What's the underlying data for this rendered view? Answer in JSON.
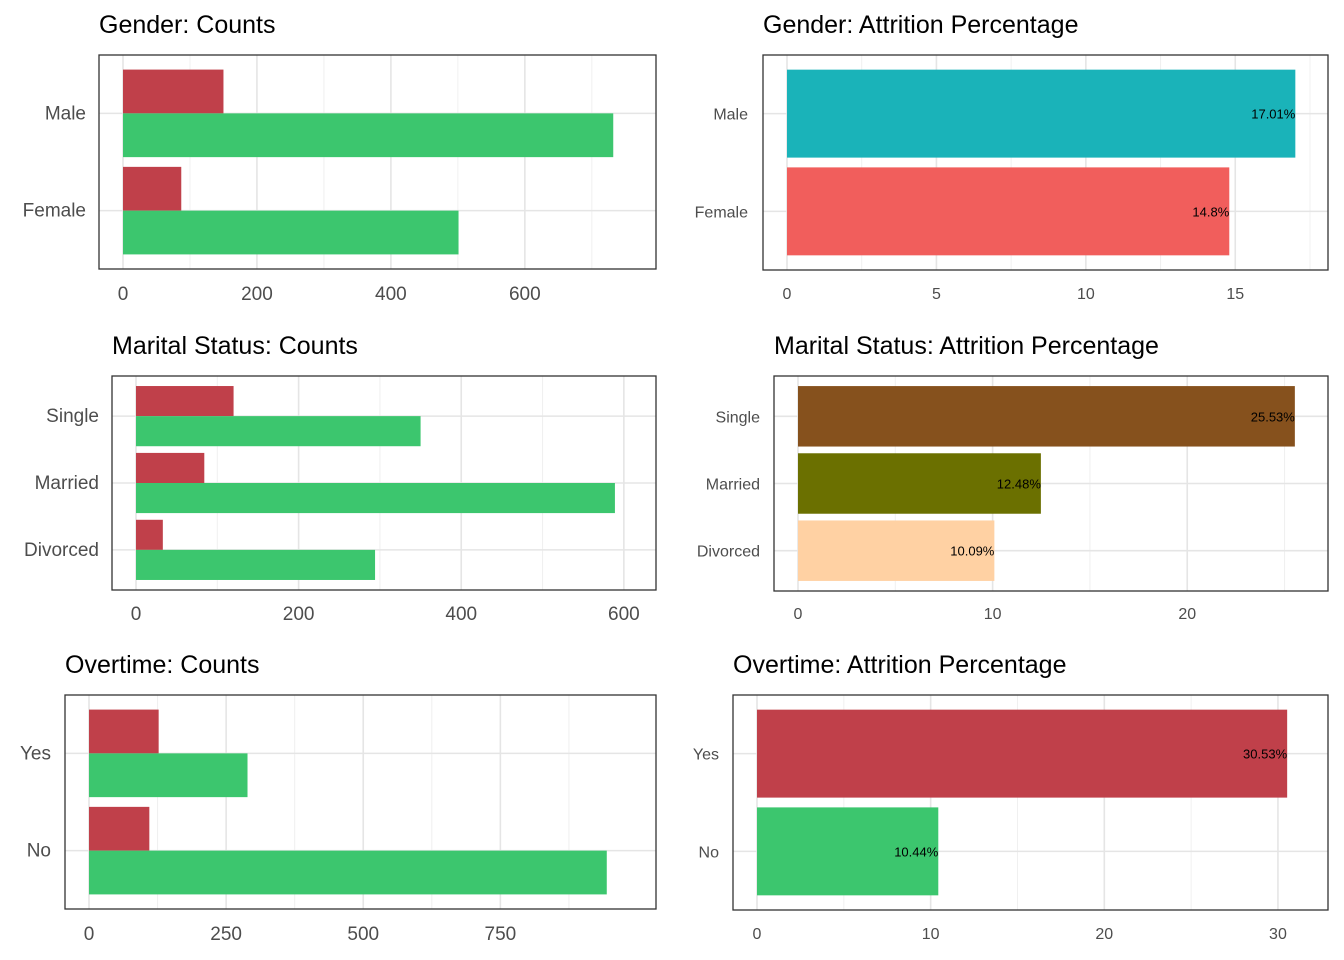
{
  "chart_data": [
    {
      "type": "bar",
      "title": "Gender: Counts",
      "categories": [
        "Female",
        "Male"
      ],
      "series": [
        {
          "values": [
            87,
            150
          ],
          "color": "#c0404a"
        },
        {
          "values": [
            501,
            732
          ],
          "color": "#3cc66e"
        }
      ],
      "xticks": [
        "0",
        "200",
        "400",
        "600"
      ],
      "xlim": [
        0,
        760
      ]
    },
    {
      "type": "bar",
      "title": "Gender: Attrition Percentage",
      "categories": [
        "Female",
        "Male"
      ],
      "values": [
        14.8,
        17.01
      ],
      "labels": [
        "14.8%",
        "17.01%"
      ],
      "colors": [
        "#f15e5c",
        "#1ab3b9"
      ],
      "xticks": [
        "0",
        "5",
        "10",
        "15"
      ],
      "xlim": [
        0,
        17.3
      ]
    },
    {
      "type": "bar",
      "title": "Marital Status: Counts",
      "categories": [
        "Divorced",
        "Married",
        "Single"
      ],
      "series": [
        {
          "values": [
            33,
            84,
            120
          ],
          "color": "#c0404a"
        },
        {
          "values": [
            294,
            589,
            350
          ],
          "color": "#3cc66e"
        }
      ],
      "xticks": [
        "0",
        "200",
        "400",
        "600"
      ],
      "xlim": [
        0,
        610
      ]
    },
    {
      "type": "bar",
      "title": "Marital Status: Attrition Percentage",
      "categories": [
        "Divorced",
        "Married",
        "Single"
      ],
      "values": [
        10.09,
        12.48,
        25.53
      ],
      "labels": [
        "10.09%",
        "12.48%",
        "25.53%"
      ],
      "colors": [
        "#ffd1a3",
        "#6b7000",
        "#86511d"
      ],
      "xticks": [
        "0",
        "10",
        "20"
      ],
      "xlim": [
        0,
        26
      ]
    },
    {
      "type": "bar",
      "title": "Overtime: Counts",
      "categories": [
        "No",
        "Yes"
      ],
      "series": [
        {
          "values": [
            110,
            127
          ],
          "color": "#c0404a"
        },
        {
          "values": [
            944,
            289
          ],
          "color": "#3cc66e"
        }
      ],
      "xticks": [
        "0",
        "250",
        "500",
        "750"
      ],
      "xlim": [
        0,
        990
      ]
    },
    {
      "type": "bar",
      "title": "Overtime: Attrition Percentage",
      "categories": [
        "No",
        "Yes"
      ],
      "values": [
        10.44,
        30.53
      ],
      "labels": [
        "10.44%",
        "30.53%"
      ],
      "colors": [
        "#3cc66e",
        "#c0404a"
      ],
      "xticks": [
        "0",
        "10",
        "20",
        "30"
      ],
      "xlim": [
        0,
        31.5
      ]
    }
  ]
}
